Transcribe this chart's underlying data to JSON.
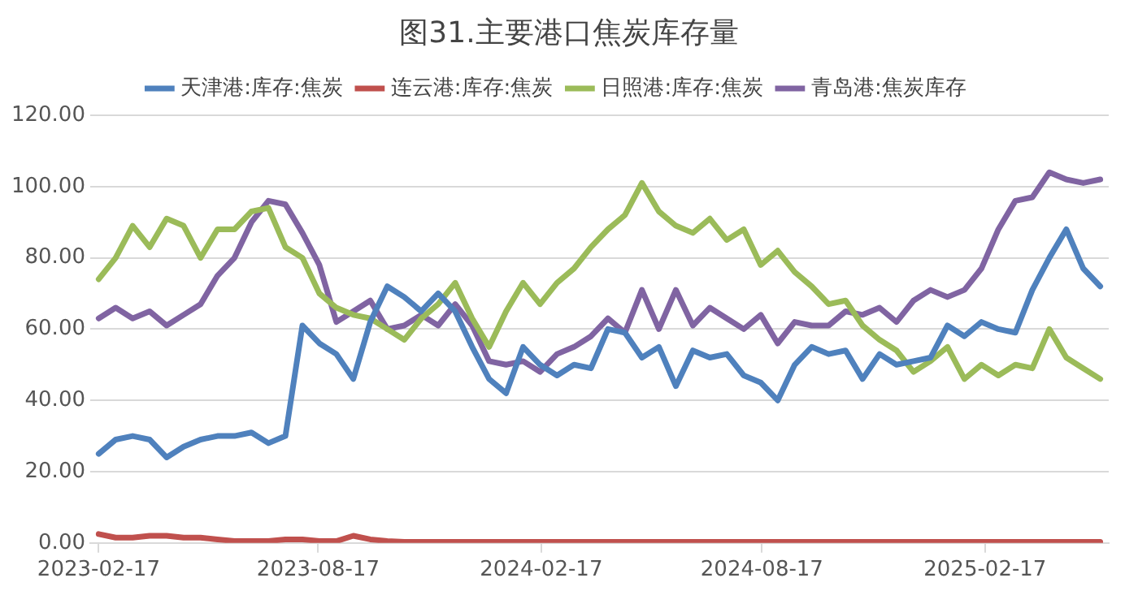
{
  "chart_data": {
    "type": "line",
    "title": "图31.主要港口焦炭库存量",
    "x": [
      "2023-02-17",
      "2023-03-03",
      "2023-03-17",
      "2023-03-31",
      "2023-04-14",
      "2023-04-28",
      "2023-05-12",
      "2023-05-26",
      "2023-06-09",
      "2023-06-23",
      "2023-07-07",
      "2023-07-21",
      "2023-08-04",
      "2023-08-18",
      "2023-09-01",
      "2023-09-15",
      "2023-09-29",
      "2023-10-13",
      "2023-10-27",
      "2023-11-10",
      "2023-11-24",
      "2023-12-08",
      "2023-12-22",
      "2024-01-05",
      "2024-01-19",
      "2024-02-02",
      "2024-02-16",
      "2024-03-01",
      "2024-03-15",
      "2024-03-29",
      "2024-04-12",
      "2024-04-26",
      "2024-05-10",
      "2024-05-24",
      "2024-06-07",
      "2024-06-21",
      "2024-07-05",
      "2024-07-19",
      "2024-08-02",
      "2024-08-16",
      "2024-08-30",
      "2024-09-13",
      "2024-09-27",
      "2024-10-11",
      "2024-10-25",
      "2024-11-08",
      "2024-11-22",
      "2024-12-06",
      "2024-12-20",
      "2025-01-03",
      "2025-01-17",
      "2025-01-31",
      "2025-02-14",
      "2025-02-28",
      "2025-03-14",
      "2025-03-28",
      "2025-04-11",
      "2025-04-25",
      "2025-05-09",
      "2025-05-23"
    ],
    "series": [
      {
        "name": "天津港:库存:焦炭",
        "color": "#4f81bd",
        "values": [
          25,
          29,
          30,
          29,
          24,
          27,
          29,
          30,
          30,
          31,
          28,
          30,
          61,
          56,
          53,
          46,
          62,
          72,
          69,
          65,
          70,
          65,
          55,
          46,
          42,
          55,
          50,
          47,
          50,
          49,
          60,
          59,
          52,
          55,
          44,
          54,
          52,
          53,
          47,
          45,
          40,
          50,
          55,
          53,
          54,
          46,
          53,
          50,
          51,
          52,
          61,
          58,
          62,
          60,
          59,
          71,
          80,
          88,
          77,
          72
        ]
      },
      {
        "name": "连云港:库存:焦炭",
        "color": "#c0504d",
        "values": [
          2.5,
          1.5,
          1.5,
          2,
          2,
          1.5,
          1.5,
          1,
          0.5,
          0.5,
          0.5,
          1,
          1,
          0.5,
          0.5,
          2,
          1,
          0.5,
          0.3,
          0.3,
          0.3,
          0.3,
          0.3,
          0.3,
          0.3,
          0.3,
          0.3,
          0.3,
          0.3,
          0.3,
          0.3,
          0.3,
          0.3,
          0.3,
          0.3,
          0.3,
          0.3,
          0.3,
          0.3,
          0.3,
          0.3,
          0.3,
          0.3,
          0.3,
          0.3,
          0.3,
          0.3,
          0.3,
          0.3,
          0.3,
          0.3,
          0.3,
          0.3,
          0.3,
          0.3,
          0.3,
          0.3,
          0.3,
          0.3,
          0.3
        ]
      },
      {
        "name": "日照港:库存:焦炭",
        "color": "#9bbb59",
        "values": [
          74,
          80,
          89,
          83,
          91,
          89,
          80,
          88,
          88,
          93,
          94,
          83,
          80,
          70,
          66,
          64,
          63,
          60,
          57,
          63,
          67,
          73,
          63,
          55,
          65,
          73,
          67,
          73,
          77,
          83,
          88,
          92,
          101,
          93,
          89,
          87,
          91,
          85,
          88,
          78,
          82,
          76,
          72,
          67,
          68,
          61,
          57,
          54,
          48,
          51,
          55,
          46,
          50,
          47,
          50,
          49,
          60,
          52,
          49,
          46
        ]
      },
      {
        "name": "青岛港:焦炭库存",
        "color": "#8064a2",
        "values": [
          63,
          66,
          63,
          65,
          61,
          64,
          67,
          75,
          80,
          90,
          96,
          95,
          87,
          78,
          62,
          65,
          68,
          60,
          61,
          64,
          61,
          67,
          61,
          51,
          50,
          51,
          48,
          53,
          55,
          58,
          63,
          59,
          71,
          60,
          71,
          61,
          66,
          63,
          60,
          64,
          56,
          62,
          61,
          61,
          65,
          64,
          66,
          62,
          68,
          71,
          69,
          71,
          77,
          88,
          96,
          97,
          104,
          102,
          101,
          102
        ]
      }
    ],
    "xlim": [
      "2023-02-10",
      "2025-05-30"
    ],
    "xticks": [
      "2023-02-17",
      "2023-08-17",
      "2024-02-17",
      "2024-08-17",
      "2025-02-17"
    ],
    "ylim": [
      0,
      120
    ],
    "yticks": [
      {
        "value": 0,
        "label": "0.00"
      },
      {
        "value": 20,
        "label": "20.00"
      },
      {
        "value": 40,
        "label": "40.00"
      },
      {
        "value": 60,
        "label": "60.00"
      },
      {
        "value": 80,
        "label": "80.00"
      },
      {
        "value": 100,
        "label": "100.00"
      },
      {
        "value": 120,
        "label": "120.00"
      }
    ],
    "grid": "y",
    "legend": "top",
    "marker": "none",
    "line_style": "solid"
  }
}
